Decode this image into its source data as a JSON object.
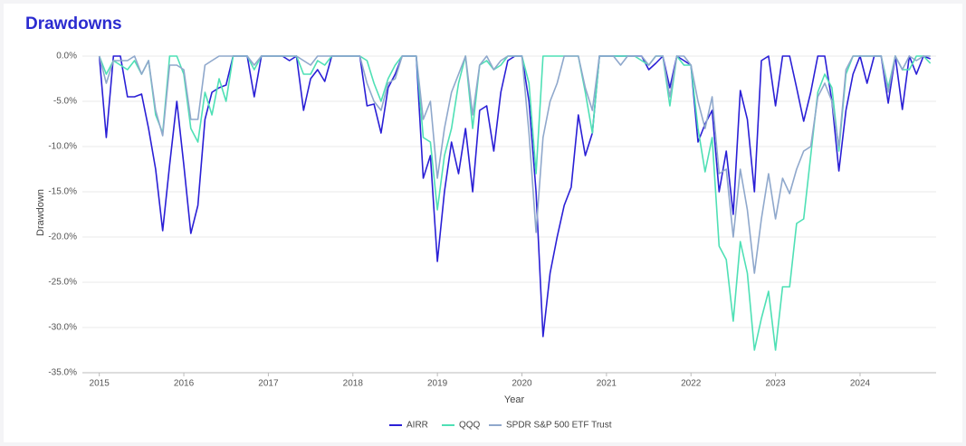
{
  "chart_data": {
    "type": "line",
    "title": "Drawdowns",
    "xlabel": "Year",
    "ylabel": "Drawdown",
    "x": [
      2015,
      2015.083,
      2015.167,
      2015.25,
      2015.333,
      2015.417,
      2015.5,
      2015.583,
      2015.667,
      2015.75,
      2015.833,
      2015.917,
      2016,
      2016.083,
      2016.167,
      2016.25,
      2016.333,
      2016.417,
      2016.5,
      2016.583,
      2016.667,
      2016.75,
      2016.833,
      2016.917,
      2017,
      2017.083,
      2017.167,
      2017.25,
      2017.333,
      2017.417,
      2017.5,
      2017.583,
      2017.667,
      2017.75,
      2017.833,
      2017.917,
      2018,
      2018.083,
      2018.167,
      2018.25,
      2018.333,
      2018.417,
      2018.5,
      2018.583,
      2018.667,
      2018.75,
      2018.833,
      2018.917,
      2019,
      2019.083,
      2019.167,
      2019.25,
      2019.333,
      2019.417,
      2019.5,
      2019.583,
      2019.667,
      2019.75,
      2019.833,
      2019.917,
      2020,
      2020.083,
      2020.167,
      2020.25,
      2020.333,
      2020.417,
      2020.5,
      2020.583,
      2020.667,
      2020.75,
      2020.833,
      2020.917,
      2021,
      2021.083,
      2021.167,
      2021.25,
      2021.333,
      2021.417,
      2021.5,
      2021.583,
      2021.667,
      2021.75,
      2021.833,
      2021.917,
      2022,
      2022.083,
      2022.167,
      2022.25,
      2022.333,
      2022.417,
      2022.5,
      2022.583,
      2022.667,
      2022.75,
      2022.833,
      2022.917,
      2023,
      2023.083,
      2023.167,
      2023.25,
      2023.333,
      2023.417,
      2023.5,
      2023.583,
      2023.667,
      2023.75,
      2023.833,
      2023.917,
      2024,
      2024.083,
      2024.167,
      2024.25,
      2024.333,
      2024.417,
      2024.5,
      2024.583,
      2024.667,
      2024.75,
      2024.833
    ],
    "series": [
      {
        "name": "AIRR",
        "color": "#2a1fd6",
        "values": [
          0,
          -9,
          0,
          0,
          -4.5,
          -4.5,
          -4.2,
          -8,
          -12.5,
          -19.3,
          -12,
          -5,
          -12,
          -19.6,
          -16.5,
          -7,
          -4,
          -3.5,
          -3.2,
          0,
          0,
          0,
          -4.5,
          0,
          0,
          0,
          0,
          -0.5,
          0,
          -6,
          -2.5,
          -1.5,
          -2.8,
          0,
          0,
          0,
          0,
          0,
          -5.5,
          -5.3,
          -8.5,
          -3.5,
          -2,
          0,
          0,
          0,
          -13.5,
          -11,
          -22.7,
          -15,
          -9.5,
          -13,
          -8,
          -15,
          -6,
          -5.5,
          -10.5,
          -4,
          -0.5,
          0,
          0,
          -5,
          -15,
          -31,
          -24,
          -20,
          -16.5,
          -14.5,
          -6.5,
          -11,
          -8.5,
          0,
          0,
          0,
          0,
          0,
          0,
          0,
          -1.5,
          -0.8,
          0,
          -3.5,
          0,
          -0.5,
          -1,
          -9.5,
          -7.5,
          -6,
          -15,
          -10.5,
          -17.5,
          -3.8,
          -7,
          -15,
          -0.5,
          0,
          -5.5,
          0,
          0,
          -3.5,
          -7.2,
          -4,
          0,
          0,
          -5,
          -12.7,
          -6,
          -2,
          0,
          -3,
          0,
          0,
          -5.2,
          0,
          -5.9,
          0,
          -2,
          0,
          -0.3
        ]
      },
      {
        "name": "QQQ",
        "color": "#4fe0b5",
        "values": [
          0,
          -2,
          -0.5,
          -1,
          -1.5,
          -0.5,
          -2,
          -0.5,
          -6.5,
          -8.5,
          0,
          0,
          -2,
          -8,
          -9.5,
          -4,
          -6.5,
          -2.5,
          -5,
          0,
          0,
          0,
          -1.5,
          0,
          0,
          0,
          0,
          0,
          0,
          -2,
          -2,
          -0.5,
          -1,
          0,
          0,
          0,
          0,
          0,
          -0.5,
          -3,
          -5,
          -2.5,
          -1,
          0,
          0,
          0,
          -9,
          -9.5,
          -17,
          -11,
          -8,
          -3,
          0,
          -8,
          -1,
          -0.5,
          -1.5,
          -1,
          0,
          0,
          0,
          -3,
          -13,
          0,
          0,
          0,
          0,
          0,
          0,
          -4,
          -8.5,
          0,
          0,
          0,
          0,
          0,
          0,
          -0.5,
          -1,
          0,
          0,
          -5.5,
          0,
          -1,
          -1,
          -8,
          -12.8,
          -9,
          -21,
          -22.5,
          -29.3,
          -20.5,
          -24,
          -32.5,
          -29,
          -26,
          -32.5,
          -25.5,
          -25.5,
          -18.5,
          -18,
          -11,
          -4,
          -2,
          -3.5,
          -10.5,
          -2,
          0,
          0,
          0,
          0,
          0,
          -3.5,
          0,
          -1.5,
          -1.5,
          0,
          0,
          -0.8
        ]
      },
      {
        "name": "SPDR S&P 500 ETF Trust",
        "color": "#8fa8cc",
        "values": [
          0,
          -3,
          -0.5,
          -0.5,
          -0.5,
          0,
          -2,
          -0.5,
          -6,
          -8.8,
          -1,
          -1,
          -1.5,
          -7,
          -7,
          -1,
          -0.5,
          0,
          0,
          0,
          0,
          0,
          -1,
          0,
          0,
          0,
          0,
          0,
          0,
          -0.5,
          -1,
          0,
          0,
          0,
          0,
          0,
          0,
          0,
          -3,
          -5,
          -6,
          -3,
          -2.5,
          0,
          0,
          0,
          -7,
          -5,
          -13.5,
          -8,
          -4,
          -2,
          0,
          -6.5,
          -1,
          0,
          -1.5,
          -0.5,
          0,
          0,
          0,
          -8.5,
          -19.5,
          -9,
          -5,
          -3,
          0,
          0,
          0,
          -3.5,
          -6,
          0,
          0,
          0,
          -1,
          0,
          0,
          0,
          -1,
          0,
          0,
          -4.5,
          0,
          0,
          -1,
          -5,
          -8,
          -4.5,
          -13,
          -12.5,
          -20,
          -12.5,
          -17,
          -24,
          -18,
          -13,
          -18,
          -13.5,
          -15.2,
          -12.5,
          -10.5,
          -10,
          -4.5,
          -3,
          -5,
          -10,
          -1.5,
          0,
          0,
          0,
          0,
          0,
          -4,
          0,
          -1.5,
          0,
          -0.5,
          0,
          0
        ]
      }
    ],
    "xlim": [
      2014.8,
      2024.9
    ],
    "xticks": [
      2015,
      2016,
      2017,
      2018,
      2019,
      2020,
      2021,
      2022,
      2023,
      2024
    ],
    "ylim": [
      -35,
      0.5
    ],
    "yticks": [
      {
        "value": 0,
        "label": "0.0%"
      },
      {
        "value": -5,
        "label": "-5.0%"
      },
      {
        "value": -10,
        "label": "-10.0%"
      },
      {
        "value": -15,
        "label": "-15.0%"
      },
      {
        "value": -20,
        "label": "-20.0%"
      },
      {
        "value": -25,
        "label": "-25.0%"
      },
      {
        "value": -30,
        "label": "-30.0%"
      },
      {
        "value": -35,
        "label": "-35.0%"
      }
    ],
    "grid": true,
    "legend": "bottom"
  }
}
